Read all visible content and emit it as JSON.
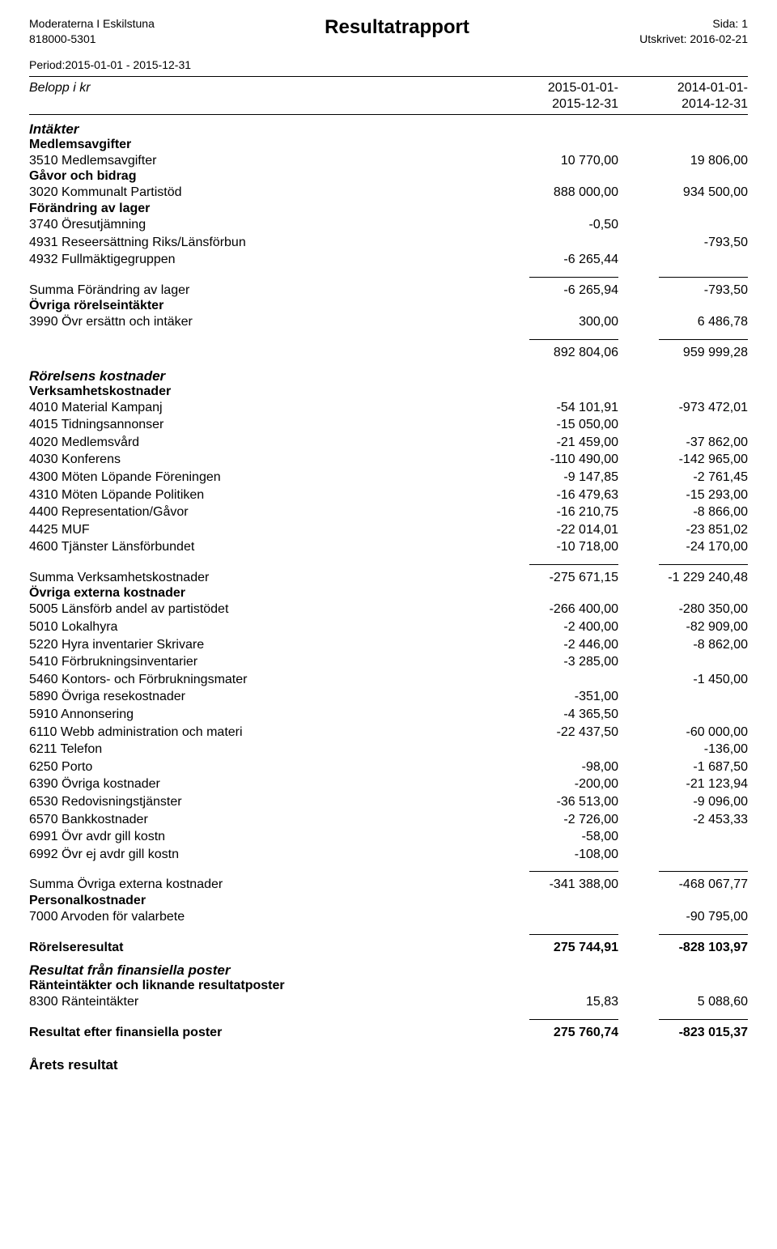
{
  "header": {
    "org_name": "Moderaterna I Eskilstuna",
    "org_no": "818000-5301",
    "title": "Resultatrapport",
    "page_label": "Sida: 1",
    "printed_label": "Utskrivet: 2016-02-21",
    "period_line": "Period:2015-01-01 - 2015-12-31"
  },
  "columns": {
    "belopp": "Belopp i kr",
    "p1a": "2015-01-01-",
    "p1b": "2015-12-31",
    "p2a": "2014-01-01-",
    "p2b": "2014-12-31"
  },
  "s_intakter": "Intäkter",
  "sh_medlems": "Medlemsavgifter",
  "r_3510": {
    "lbl": "3510 Medlemsavgifter",
    "v1": "10 770,00",
    "v2": "19 806,00"
  },
  "sh_gavor": "Gåvor och bidrag",
  "r_3020": {
    "lbl": "3020 Kommunalt Partistöd",
    "v1": "888 000,00",
    "v2": "934 500,00"
  },
  "sh_forandring": "Förändring av lager",
  "r_3740": {
    "lbl": "3740 Öresutjämning",
    "v1": "-0,50",
    "v2": ""
  },
  "r_4931": {
    "lbl": "4931 Reseersättning Riks/Länsförbun",
    "v1": "",
    "v2": "-793,50"
  },
  "r_4932": {
    "lbl": "4932 Fullmäktigegruppen",
    "v1": "-6 265,44",
    "v2": ""
  },
  "r_sumfor": {
    "lbl": "Summa Förändring av lager",
    "v1": "-6 265,94",
    "v2": "-793,50"
  },
  "sh_ovrror": "Övriga rörelseintäkter",
  "r_3990": {
    "lbl": "3990 Övr ersättn och intäker",
    "v1": "300,00",
    "v2": "6 486,78"
  },
  "r_totint": {
    "lbl": "",
    "v1": "892 804,06",
    "v2": "959 999,28"
  },
  "s_rkost": "Rörelsens kostnader",
  "sh_verks": "Verksamhetskostnader",
  "r_4010": {
    "lbl": "4010 Material Kampanj",
    "v1": "-54 101,91",
    "v2": "-973 472,01"
  },
  "r_4015": {
    "lbl": "4015 Tidningsannonser",
    "v1": "-15 050,00",
    "v2": ""
  },
  "r_4020": {
    "lbl": "4020 Medlemsvård",
    "v1": "-21 459,00",
    "v2": "-37 862,00"
  },
  "r_4030": {
    "lbl": "4030 Konferens",
    "v1": "-110 490,00",
    "v2": "-142 965,00"
  },
  "r_4300": {
    "lbl": "4300 Möten Löpande Föreningen",
    "v1": "-9 147,85",
    "v2": "-2 761,45"
  },
  "r_4310": {
    "lbl": "4310 Möten Löpande Politiken",
    "v1": "-16 479,63",
    "v2": "-15 293,00"
  },
  "r_4400": {
    "lbl": "4400 Representation/Gåvor",
    "v1": "-16 210,75",
    "v2": "-8 866,00"
  },
  "r_4425": {
    "lbl": "4425 MUF",
    "v1": "-22 014,01",
    "v2": "-23 851,02"
  },
  "r_4600": {
    "lbl": "4600 Tjänster Länsförbundet",
    "v1": "-10 718,00",
    "v2": "-24 170,00"
  },
  "r_sumverks": {
    "lbl": "Summa Verksamhetskostnader",
    "v1": "-275 671,15",
    "v2": "-1 229 240,48"
  },
  "sh_ovrext": "Övriga externa kostnader",
  "r_5005": {
    "lbl": "5005 Länsförb andel av partistödet",
    "v1": "-266 400,00",
    "v2": "-280 350,00"
  },
  "r_5010": {
    "lbl": "5010 Lokalhyra",
    "v1": "-2 400,00",
    "v2": "-82 909,00"
  },
  "r_5220": {
    "lbl": "5220 Hyra inventarier Skrivare",
    "v1": "-2 446,00",
    "v2": "-8 862,00"
  },
  "r_5410": {
    "lbl": "5410 Förbrukningsinventarier",
    "v1": "-3 285,00",
    "v2": ""
  },
  "r_5460": {
    "lbl": "5460 Kontors- och Förbrukningsmater",
    "v1": "",
    "v2": "-1 450,00"
  },
  "r_5890": {
    "lbl": "5890 Övriga resekostnader",
    "v1": "-351,00",
    "v2": ""
  },
  "r_5910": {
    "lbl": "5910 Annonsering",
    "v1": "-4 365,50",
    "v2": ""
  },
  "r_6110": {
    "lbl": "6110 Webb administration och materi",
    "v1": "-22 437,50",
    "v2": "-60 000,00"
  },
  "r_6211": {
    "lbl": "6211 Telefon",
    "v1": "",
    "v2": "-136,00"
  },
  "r_6250": {
    "lbl": "6250 Porto",
    "v1": "-98,00",
    "v2": "-1 687,50"
  },
  "r_6390": {
    "lbl": "6390 Övriga kostnader",
    "v1": "-200,00",
    "v2": "-21 123,94"
  },
  "r_6530": {
    "lbl": "6530 Redovisningstjänster",
    "v1": "-36 513,00",
    "v2": "-9 096,00"
  },
  "r_6570": {
    "lbl": "6570 Bankkostnader",
    "v1": "-2 726,00",
    "v2": "-2 453,33"
  },
  "r_6991": {
    "lbl": "6991 Övr avdr gill kostn",
    "v1": "-58,00",
    "v2": ""
  },
  "r_6992": {
    "lbl": "6992 Övr ej avdr gill kostn",
    "v1": "-108,00",
    "v2": ""
  },
  "r_sumovrext": {
    "lbl": "Summa Övriga externa kostnader",
    "v1": "-341 388,00",
    "v2": "-468 067,77"
  },
  "sh_pers": "Personalkostnader",
  "r_7000": {
    "lbl": "7000 Arvoden för valarbete",
    "v1": "",
    "v2": "-90 795,00"
  },
  "r_rores": {
    "lbl": "Rörelseresultat",
    "v1": "275 744,91",
    "v2": "-828 103,97"
  },
  "s_finpost": "Resultat från finansiella poster",
  "sh_rante": "Ränteintäkter och liknande resultatposter",
  "r_8300": {
    "lbl": "8300 Ränteintäkter",
    "v1": "15,83",
    "v2": "5 088,60"
  },
  "r_resfin": {
    "lbl": "Resultat efter finansiella poster",
    "v1": "275 760,74",
    "v2": "-823 015,37"
  },
  "s_arets": "Årets resultat"
}
